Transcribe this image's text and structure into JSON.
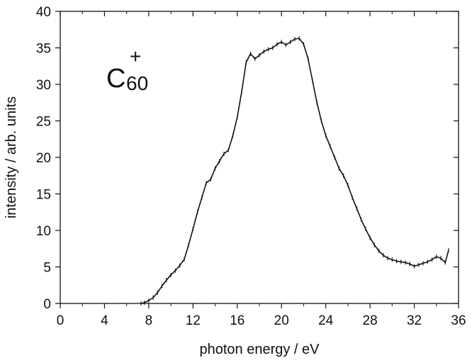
{
  "chart_data": {
    "type": "line",
    "xlabel": "photon energy / eV",
    "ylabel": "intensity / arb. units",
    "xlim": [
      0,
      36
    ],
    "ylim": [
      0,
      40
    ],
    "x_ticks": [
      0,
      4,
      8,
      12,
      16,
      20,
      24,
      28,
      32,
      36
    ],
    "y_ticks": [
      0,
      5,
      10,
      15,
      20,
      25,
      30,
      35,
      40
    ],
    "x_minor_step": 2,
    "grid": false,
    "legend": "none",
    "annotation": {
      "base": "C",
      "subscript": "60",
      "superscript": "+"
    },
    "series": [
      {
        "color": "#111111",
        "x": [
          7.3,
          7.6,
          8.0,
          8.4,
          8.8,
          9.2,
          9.6,
          10.0,
          10.4,
          10.8,
          11.2,
          11.6,
          12.0,
          12.4,
          12.8,
          13.2,
          13.6,
          14.0,
          14.4,
          14.8,
          15.2,
          15.6,
          16.0,
          16.4,
          16.8,
          17.2,
          17.6,
          18.0,
          18.4,
          18.8,
          19.2,
          19.6,
          20.0,
          20.4,
          20.8,
          21.2,
          21.6,
          22.0,
          22.4,
          22.8,
          23.2,
          23.6,
          24.0,
          24.4,
          24.8,
          25.2,
          25.6,
          26.0,
          26.4,
          26.8,
          27.2,
          27.6,
          28.0,
          28.4,
          28.8,
          29.2,
          29.6,
          30.0,
          30.4,
          30.8,
          31.2,
          31.6,
          32.0,
          32.4,
          32.8,
          33.2,
          33.6,
          34.0,
          34.4,
          34.8,
          35.1
        ],
        "y": [
          0.0,
          0.1,
          0.4,
          0.8,
          1.5,
          2.4,
          3.2,
          3.9,
          4.5,
          5.2,
          6.0,
          8.0,
          10.2,
          12.5,
          14.5,
          16.5,
          17.0,
          18.5,
          19.5,
          20.5,
          21.0,
          23.0,
          25.5,
          29.0,
          33.0,
          34.2,
          33.5,
          34.0,
          34.5,
          34.8,
          35.0,
          35.5,
          35.8,
          35.4,
          35.8,
          36.2,
          36.3,
          35.5,
          33.5,
          30.5,
          27.5,
          25.0,
          23.0,
          21.5,
          20.0,
          18.5,
          17.5,
          16.2,
          14.5,
          13.0,
          11.5,
          10.2,
          9.0,
          8.0,
          7.2,
          6.6,
          6.2,
          6.0,
          5.8,
          5.7,
          5.6,
          5.4,
          5.1,
          5.3,
          5.5,
          5.7,
          6.0,
          6.4,
          6.2,
          5.6,
          7.3
        ]
      }
    ]
  }
}
